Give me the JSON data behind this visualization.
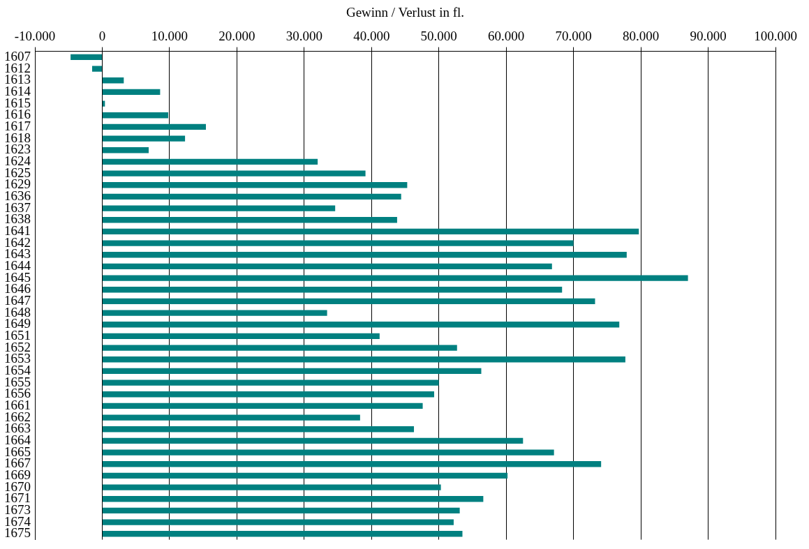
{
  "chart_data": {
    "type": "bar",
    "orientation": "horizontal",
    "xlabel": "Gewinn / Verlust in fl.",
    "categories": [
      "1607",
      "1612",
      "1613",
      "1614",
      "1615",
      "1616",
      "1617",
      "1618",
      "1623",
      "1624",
      "1625",
      "1629",
      "1636",
      "1637",
      "1638",
      "1641",
      "1642",
      "1643",
      "1644",
      "1645",
      "1646",
      "1647",
      "1648",
      "1649",
      "1651",
      "1652",
      "1653",
      "1654",
      "1655",
      "1656",
      "1661",
      "1662",
      "1663",
      "1664",
      "1665",
      "1667",
      "1669",
      "1670",
      "1671",
      "1673",
      "1674",
      "1675"
    ],
    "values": [
      -4700,
      -1500,
      3200,
      8600,
      400,
      9800,
      15400,
      12300,
      6900,
      32000,
      39100,
      45300,
      44400,
      34600,
      43800,
      79700,
      70000,
      77900,
      66800,
      87000,
      68300,
      73200,
      33400,
      76800,
      41200,
      52700,
      77700,
      56300,
      50000,
      49300,
      47600,
      38300,
      46300,
      62500,
      67100,
      74100,
      60200,
      50300,
      56600,
      53100,
      52200,
      53500
    ],
    "color": "#008080",
    "xlim": [
      -10000,
      100000
    ],
    "xticks": [
      {
        "value": -10000,
        "label": "-10.000"
      },
      {
        "value": 0,
        "label": "0"
      },
      {
        "value": 10000,
        "label": "10.000"
      },
      {
        "value": 20000,
        "label": "20.000"
      },
      {
        "value": 30000,
        "label": "30.000"
      },
      {
        "value": 40000,
        "label": "40.000"
      },
      {
        "value": 50000,
        "label": "50.000"
      },
      {
        "value": 60000,
        "label": "60.000"
      },
      {
        "value": 70000,
        "label": "70.000"
      },
      {
        "value": 80000,
        "label": "80.000"
      },
      {
        "value": 90000,
        "label": "90.000"
      },
      {
        "value": 100000,
        "label": "100.000"
      }
    ],
    "grid": "x",
    "legend": false
  }
}
